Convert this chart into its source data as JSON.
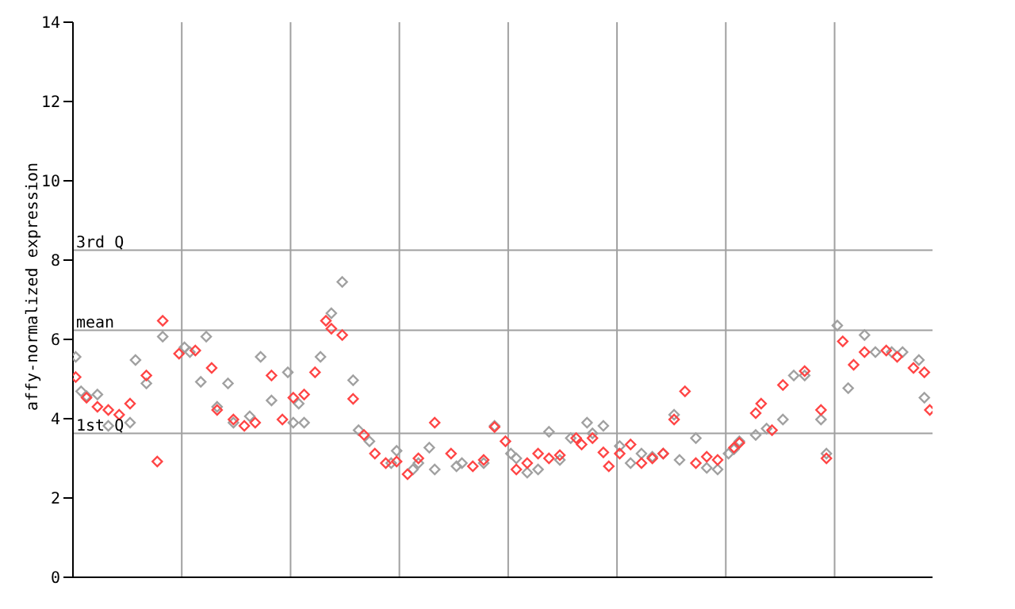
{
  "chart_data": {
    "type": "scatter",
    "ylabel": "affy-normalized expression",
    "categories": [
      null,
      null,
      null,
      null,
      null,
      null,
      null,
      null,
      null,
      null,
      null,
      null,
      null,
      null,
      null,
      null,
      null,
      null,
      null,
      null,
      null,
      null,
      null,
      null,
      null,
      null,
      null,
      null,
      null,
      null,
      null,
      null,
      null,
      null,
      null,
      null,
      null,
      null,
      null,
      null,
      null,
      null,
      null,
      null,
      null,
      null,
      null,
      null,
      null,
      null,
      null,
      null,
      null,
      null,
      null,
      null,
      null,
      null,
      null,
      null,
      null,
      null,
      null,
      null,
      null,
      null,
      null,
      null,
      null,
      null,
      null,
      null,
      null,
      null,
      null,
      null,
      null,
      null,
      null,
      null,
      null,
      null,
      null,
      null,
      null,
      null,
      null,
      null,
      null,
      null,
      null,
      null,
      null,
      null,
      null,
      null,
      null,
      null,
      null,
      null,
      null,
      null,
      null,
      null,
      null,
      null,
      null,
      null,
      null,
      null,
      null,
      null,
      null,
      null,
      null,
      null,
      null,
      null,
      null,
      null,
      null,
      null,
      null,
      null,
      null,
      null,
      null,
      null,
      null,
      null,
      null,
      null,
      null,
      null,
      null,
      null,
      null,
      null,
      null,
      null,
      null,
      null,
      null,
      null,
      null,
      null,
      null,
      null,
      null,
      null,
      null,
      null,
      null,
      null,
      null,
      null,
      null,
      null
    ],
    "ylim": [
      0,
      14
    ],
    "yticks": [
      0,
      2,
      4,
      6,
      8,
      10,
      12,
      14
    ],
    "grid": "x",
    "marker": "diamond",
    "ref_lines": [
      {
        "axis": "y",
        "value": 8.25,
        "label": "3rd Q",
        "color": "#a0a0a0"
      },
      {
        "axis": "y",
        "value": 6.23,
        "label": "mean",
        "color": "#a0a0a0"
      },
      {
        "axis": "y",
        "value": 3.63,
        "label": "1st Q",
        "color": "#a0a0a0"
      }
    ],
    "series": [
      {
        "color": "#a0a0a0",
        "values": [
          5.56,
          4.69,
          4.57,
          null,
          4.61,
          null,
          3.82,
          null,
          null,
          null,
          3.9,
          5.48,
          null,
          4.89,
          null,
          null,
          6.07,
          null,
          null,
          null,
          5.8,
          5.68,
          null,
          4.93,
          6.07,
          null,
          4.3,
          null,
          4.89,
          3.9,
          null,
          null,
          4.06,
          null,
          5.56,
          null,
          4.46,
          null,
          null,
          5.17,
          3.9,
          4.38,
          3.9,
          null,
          null,
          5.56,
          null,
          6.66,
          null,
          7.45,
          null,
          4.97,
          3.71,
          null,
          3.43,
          null,
          null,
          null,
          2.88,
          3.19,
          null,
          null,
          2.72,
          2.88,
          null,
          3.27,
          2.72,
          null,
          null,
          null,
          2.8,
          2.88,
          null,
          null,
          null,
          2.88,
          null,
          3.82,
          null,
          null,
          3.12,
          3.0,
          null,
          2.64,
          null,
          2.72,
          null,
          3.67,
          null,
          2.96,
          null,
          3.51,
          null,
          null,
          3.9,
          3.63,
          null,
          3.82,
          null,
          null,
          3.31,
          null,
          2.88,
          null,
          3.12,
          null,
          3.04,
          null,
          3.12,
          null,
          4.1,
          2.96,
          null,
          null,
          3.51,
          null,
          2.76,
          null,
          2.72,
          null,
          3.12,
          3.23,
          3.43,
          null,
          null,
          3.59,
          null,
          3.75,
          null,
          null,
          3.98,
          null,
          5.09,
          null,
          5.09,
          null,
          null,
          3.98,
          3.12,
          null,
          6.35,
          null,
          4.77,
          null,
          null,
          6.11,
          null,
          5.68,
          null,
          null,
          5.68,
          null,
          5.68,
          null,
          null,
          5.48,
          4.53,
          null
        ]
      },
      {
        "color": "#ff4444",
        "values": [
          5.05,
          null,
          4.53,
          null,
          4.3,
          null,
          4.22,
          null,
          4.1,
          null,
          4.38,
          null,
          null,
          5.09,
          null,
          2.92,
          6.47,
          null,
          null,
          5.64,
          null,
          null,
          5.72,
          null,
          null,
          5.28,
          4.22,
          null,
          null,
          3.98,
          null,
          3.82,
          null,
          3.9,
          null,
          null,
          5.09,
          null,
          3.98,
          null,
          4.53,
          null,
          4.61,
          null,
          5.17,
          null,
          6.47,
          6.27,
          null,
          6.11,
          null,
          4.5,
          null,
          3.59,
          null,
          3.12,
          null,
          2.88,
          null,
          2.92,
          null,
          2.6,
          null,
          3.0,
          null,
          null,
          3.9,
          null,
          null,
          3.12,
          null,
          null,
          null,
          2.8,
          null,
          2.96,
          null,
          3.79,
          null,
          3.43,
          null,
          2.72,
          null,
          2.88,
          null,
          3.12,
          null,
          3.0,
          null,
          3.08,
          null,
          null,
          3.51,
          3.35,
          null,
          3.51,
          null,
          3.15,
          2.8,
          null,
          3.12,
          null,
          3.35,
          null,
          2.88,
          null,
          3.0,
          null,
          3.12,
          null,
          3.98,
          null,
          4.69,
          null,
          2.88,
          null,
          3.04,
          null,
          2.96,
          null,
          null,
          3.27,
          3.39,
          null,
          null,
          4.14,
          4.38,
          null,
          3.71,
          null,
          4.85,
          null,
          null,
          null,
          5.2,
          null,
          null,
          4.22,
          3.0,
          null,
          null,
          5.95,
          null,
          5.36,
          null,
          5.68,
          null,
          null,
          null,
          5.72,
          null,
          5.56,
          null,
          null,
          5.28,
          null,
          5.17,
          4.22
        ]
      }
    ]
  }
}
